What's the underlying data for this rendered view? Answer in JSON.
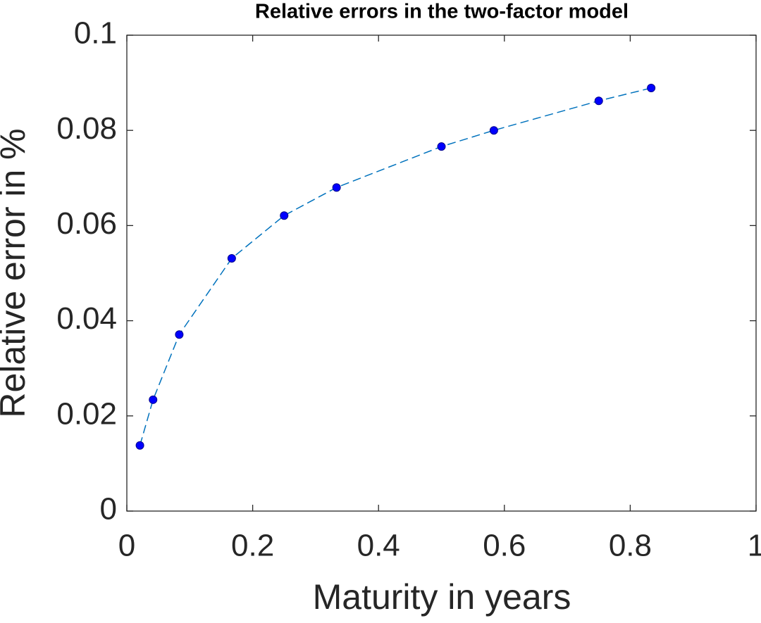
{
  "chart_data": {
    "type": "line",
    "title": "Relative errors in the two-factor model",
    "xlabel": "Maturity in years",
    "ylabel": "Relative error in %",
    "x": [
      0.0208,
      0.0417,
      0.0833,
      0.1667,
      0.25,
      0.3333,
      0.5,
      0.5833,
      0.75,
      0.8333
    ],
    "series": [
      {
        "name": "Relative error",
        "color": "#0072bd",
        "marker_color": "#0000ff",
        "values": [
          0.0138,
          0.0234,
          0.0371,
          0.0531,
          0.0621,
          0.068,
          0.0766,
          0.08,
          0.0862,
          0.0889
        ]
      }
    ],
    "xlim": [
      0,
      1
    ],
    "xticks": [
      0,
      0.2,
      0.4,
      0.6,
      0.8,
      1
    ],
    "ylim": [
      0,
      0.1
    ],
    "yticks": [
      0,
      0.02,
      0.04,
      0.06,
      0.08,
      0.1
    ],
    "grid": false
  }
}
